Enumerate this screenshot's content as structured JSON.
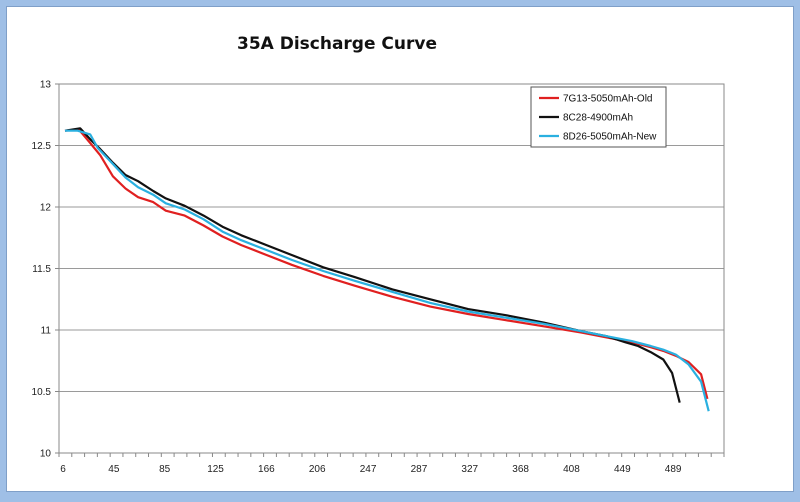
{
  "chart_data": {
    "type": "line",
    "title": "35A Discharge Curve",
    "xlabel": "",
    "ylabel": "",
    "ylim": [
      10,
      13
    ],
    "y_ticks": [
      "10",
      "10.5",
      "11",
      "11.5",
      "12",
      "12.5",
      "13"
    ],
    "x_tick_labels": [
      "6",
      "45",
      "85",
      "125",
      "166",
      "206",
      "247",
      "287",
      "327",
      "368",
      "408",
      "449",
      "489"
    ],
    "xlim": [
      0,
      520
    ],
    "grid": "horizontal",
    "legend_position": "top-right",
    "series": [
      {
        "name": "7G13-5050mAh-Old",
        "color": "#e02020",
        "x": [
          0,
          11,
          20,
          28,
          38,
          48,
          58,
          70,
          80,
          95,
          110,
          125,
          140,
          160,
          180,
          205,
          230,
          260,
          290,
          320,
          350,
          380,
          410,
          430,
          450,
          465,
          475,
          485,
          495,
          505,
          510
        ],
        "y": [
          12.62,
          12.63,
          12.52,
          12.42,
          12.25,
          12.15,
          12.08,
          12.04,
          11.97,
          11.93,
          11.85,
          11.76,
          11.69,
          11.61,
          11.53,
          11.44,
          11.36,
          11.27,
          11.19,
          11.13,
          11.08,
          11.03,
          10.98,
          10.94,
          10.9,
          10.86,
          10.83,
          10.79,
          10.74,
          10.64,
          10.44
        ]
      },
      {
        "name": "8C28-4900mAh",
        "color": "#111111",
        "x": [
          0,
          12,
          20,
          28,
          38,
          48,
          58,
          70,
          80,
          95,
          110,
          125,
          140,
          160,
          180,
          205,
          230,
          260,
          290,
          320,
          350,
          380,
          410,
          430,
          445,
          455,
          465,
          475,
          482,
          488
        ],
        "y": [
          12.62,
          12.64,
          12.55,
          12.47,
          12.36,
          12.26,
          12.21,
          12.13,
          12.07,
          12.01,
          11.93,
          11.84,
          11.77,
          11.69,
          11.61,
          11.51,
          11.43,
          11.33,
          11.25,
          11.17,
          11.12,
          11.06,
          10.99,
          10.95,
          10.9,
          10.87,
          10.82,
          10.76,
          10.65,
          10.41
        ]
      },
      {
        "name": "8D26-5050mAh-New",
        "color": "#2ab0e0",
        "x": [
          0,
          10,
          20,
          26,
          38,
          48,
          58,
          70,
          80,
          95,
          110,
          125,
          140,
          160,
          180,
          205,
          230,
          260,
          290,
          320,
          350,
          380,
          410,
          430,
          450,
          465,
          475,
          485,
          495,
          505,
          511
        ],
        "y": [
          12.62,
          12.62,
          12.59,
          12.48,
          12.35,
          12.24,
          12.16,
          12.1,
          12.03,
          11.98,
          11.9,
          11.8,
          11.73,
          11.65,
          11.57,
          11.48,
          11.4,
          11.31,
          11.22,
          11.15,
          11.1,
          11.05,
          10.99,
          10.95,
          10.91,
          10.87,
          10.84,
          10.8,
          10.72,
          10.58,
          10.34
        ]
      }
    ]
  }
}
